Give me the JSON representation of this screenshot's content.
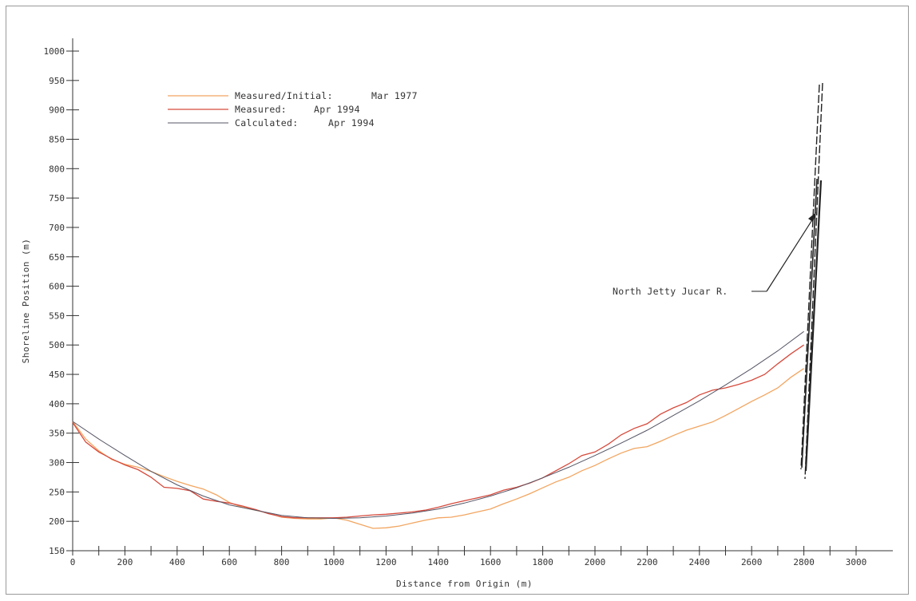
{
  "chart_data": {
    "type": "line",
    "xlabel": "Distance from Origin (m)",
    "ylabel": "Shoreline Position (m)",
    "xlim": [
      0,
      3000
    ],
    "ylim": [
      150,
      1000
    ],
    "x_ticks": [
      0,
      200,
      400,
      600,
      800,
      1000,
      1200,
      1400,
      1600,
      1800,
      2000,
      2200,
      2400,
      2600,
      2800,
      3000
    ],
    "y_ticks": [
      150,
      200,
      250,
      300,
      350,
      400,
      450,
      500,
      550,
      600,
      650,
      700,
      750,
      800,
      850,
      900,
      950,
      1000
    ],
    "legend_position": "top-left",
    "series": [
      {
        "name": "Measured/Initial:",
        "date": "Mar 1977",
        "color": "#f2a560",
        "x": [
          0,
          50,
          100,
          150,
          200,
          250,
          300,
          350,
          400,
          450,
          500,
          550,
          600,
          650,
          700,
          750,
          800,
          850,
          900,
          950,
          1000,
          1050,
          1100,
          1150,
          1200,
          1250,
          1300,
          1350,
          1400,
          1450,
          1500,
          1550,
          1600,
          1650,
          1700,
          1750,
          1800,
          1850,
          1900,
          1950,
          2000,
          2050,
          2100,
          2150,
          2200,
          2250,
          2300,
          2350,
          2400,
          2450,
          2500,
          2550,
          2600,
          2650,
          2700,
          2750,
          2800
        ],
        "values": [
          370,
          340,
          320,
          305,
          297,
          292,
          285,
          276,
          268,
          261,
          255,
          245,
          232,
          224,
          219,
          214,
          207,
          205,
          204,
          204,
          206,
          202,
          195,
          188,
          189,
          192,
          197,
          202,
          206,
          207,
          211,
          216,
          221,
          230,
          238,
          247,
          257,
          267,
          275,
          286,
          295,
          306,
          316,
          324,
          327,
          336,
          346,
          355,
          362,
          369,
          380,
          392,
          404,
          415,
          427,
          445,
          460
        ]
      },
      {
        "name": "Measured:",
        "date": "Apr 1994",
        "color": "#d64a3c",
        "x": [
          0,
          50,
          100,
          150,
          200,
          250,
          300,
          350,
          400,
          450,
          500,
          550,
          600,
          650,
          700,
          750,
          800,
          850,
          900,
          950,
          1000,
          1050,
          1100,
          1150,
          1200,
          1250,
          1300,
          1350,
          1400,
          1450,
          1500,
          1550,
          1600,
          1650,
          1700,
          1750,
          1800,
          1850,
          1900,
          1950,
          2000,
          2050,
          2100,
          2150,
          2200,
          2250,
          2300,
          2350,
          2400,
          2450,
          2500,
          2550,
          2600,
          2650,
          2700,
          2750,
          2800
        ],
        "values": [
          368,
          335,
          318,
          306,
          296,
          288,
          275,
          258,
          256,
          252,
          238,
          234,
          231,
          226,
          220,
          213,
          208,
          206,
          206,
          206,
          206,
          207,
          209,
          211,
          212,
          214,
          216,
          219,
          224,
          230,
          235,
          240,
          245,
          253,
          258,
          265,
          274,
          286,
          298,
          312,
          318,
          331,
          347,
          358,
          366,
          382,
          393,
          402,
          415,
          423,
          427,
          433,
          440,
          450,
          468,
          485,
          500
        ]
      },
      {
        "name": "Calculated:",
        "date": "Apr 1994",
        "color": "#555566",
        "x": [
          0,
          100,
          200,
          300,
          400,
          500,
          600,
          700,
          800,
          900,
          1000,
          1100,
          1200,
          1300,
          1400,
          1500,
          1600,
          1700,
          1800,
          1900,
          2000,
          2100,
          2200,
          2300,
          2400,
          2500,
          2600,
          2700,
          2800
        ],
        "values": [
          370,
          340,
          312,
          285,
          262,
          243,
          228,
          219,
          210,
          206,
          205,
          206,
          209,
          214,
          221,
          231,
          243,
          257,
          274,
          292,
          312,
          333,
          355,
          380,
          405,
          432,
          460,
          490,
          523
        ]
      }
    ],
    "annotation": {
      "text": "North Jetty Jucar R.",
      "x": 2110,
      "y": 595,
      "arrow_to": [
        2858,
        725
      ]
    }
  }
}
